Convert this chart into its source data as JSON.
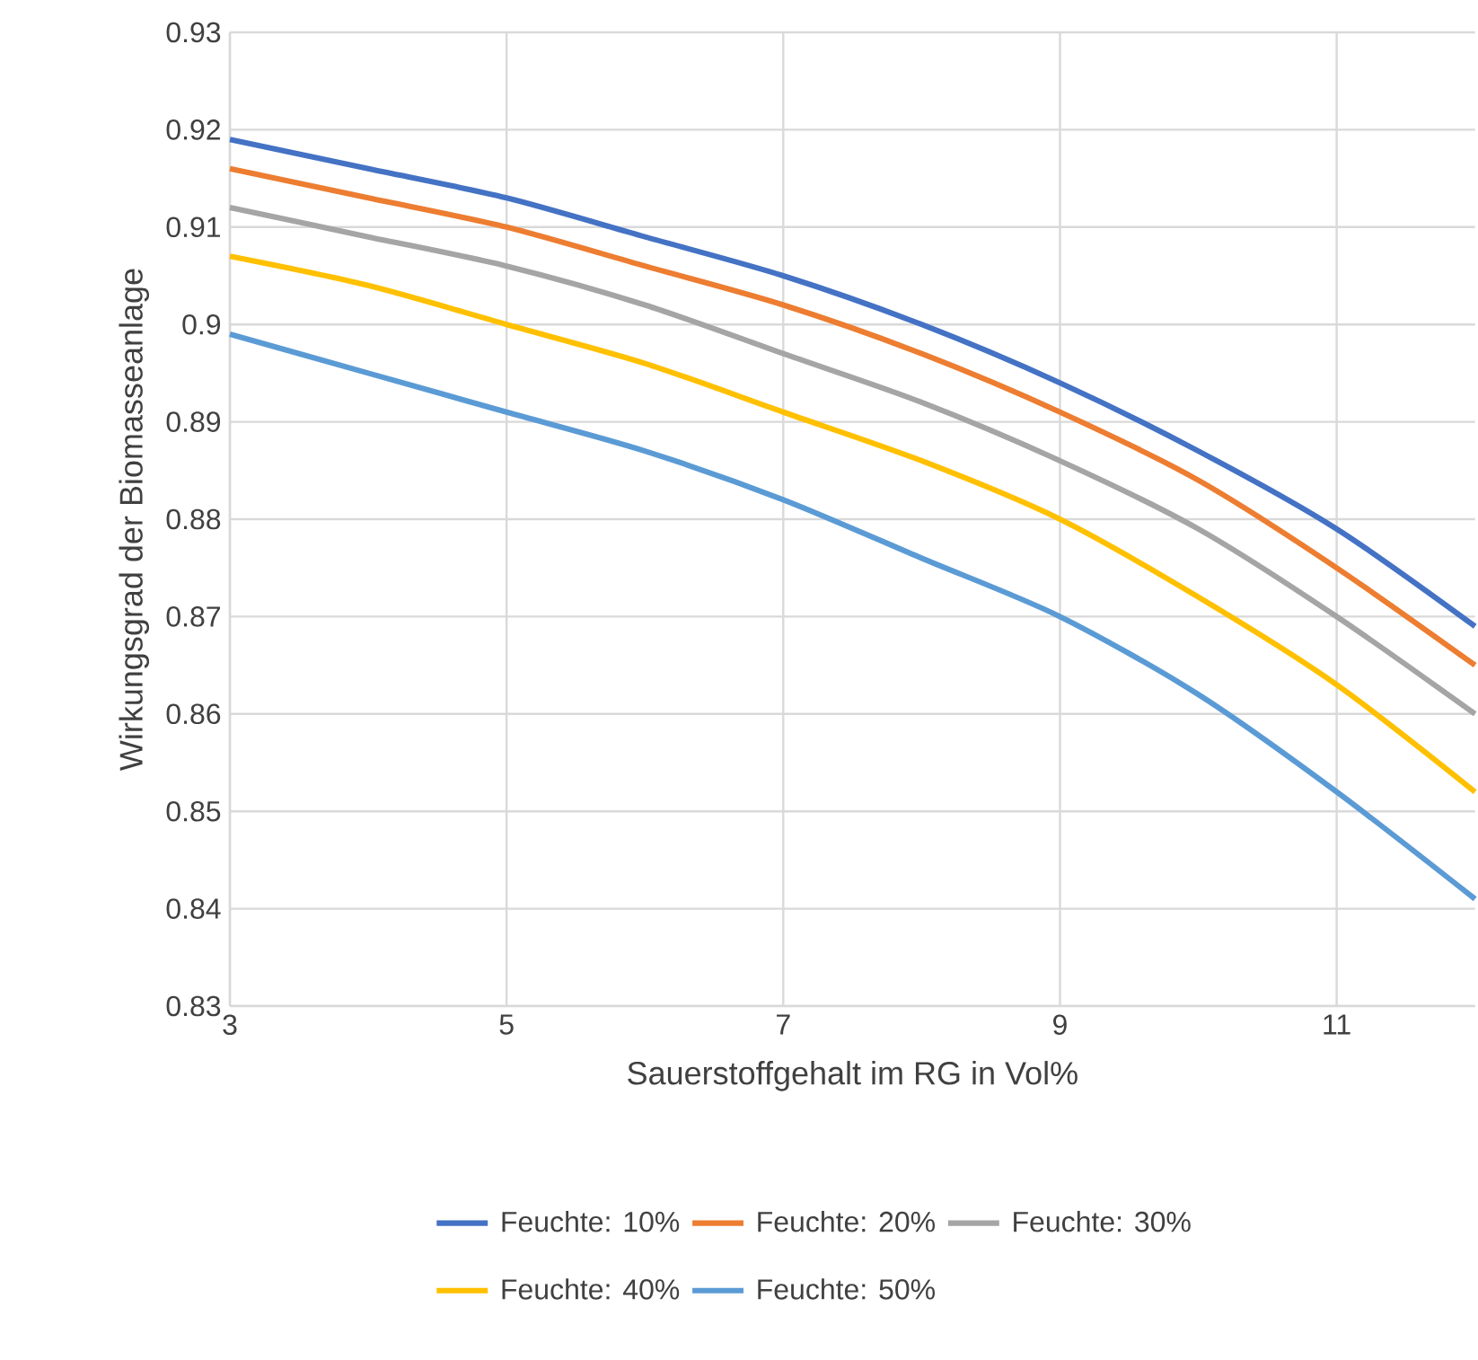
{
  "chart_data": {
    "type": "line",
    "xlabel": "Sauerstoffgehalt im RG in Vol%",
    "ylabel": "Wirkungsgrad der Biomasseanlage",
    "x": [
      3,
      4,
      5,
      6,
      7,
      8,
      9,
      10,
      11,
      12
    ],
    "series": [
      {
        "name": "Feuchte: 10%",
        "color": "#4472c4",
        "values": [
          0.919,
          0.916,
          0.913,
          0.909,
          0.905,
          0.9,
          0.894,
          0.887,
          0.879,
          0.869
        ]
      },
      {
        "name": "Feuchte: 20%",
        "color": "#ed7d31",
        "values": [
          0.916,
          0.913,
          0.91,
          0.906,
          0.902,
          0.897,
          0.891,
          0.884,
          0.875,
          0.865
        ]
      },
      {
        "name": "Feuchte: 30%",
        "color": "#a5a5a5",
        "values": [
          0.912,
          0.909,
          0.906,
          0.902,
          0.897,
          0.892,
          0.886,
          0.879,
          0.87,
          0.86
        ]
      },
      {
        "name": "Feuchte: 40%",
        "color": "#ffc000",
        "values": [
          0.907,
          0.904,
          0.9,
          0.896,
          0.891,
          0.886,
          0.88,
          0.872,
          0.863,
          0.852
        ]
      },
      {
        "name": "Feuchte: 50%",
        "color": "#5b9bd5",
        "values": [
          0.899,
          0.895,
          0.891,
          0.887,
          0.882,
          0.876,
          0.87,
          0.862,
          0.852,
          0.841
        ]
      }
    ],
    "xlim": [
      3,
      12
    ],
    "xticks": [
      3,
      5,
      7,
      9,
      11
    ],
    "ylim": [
      0.83,
      0.93
    ],
    "yticks": [
      0.83,
      0.84,
      0.85,
      0.86,
      0.87,
      0.88,
      0.89,
      0.9,
      0.91,
      0.92,
      0.93
    ],
    "grid": true,
    "legend": "bottom",
    "marker": "none",
    "line_style": "solid"
  }
}
